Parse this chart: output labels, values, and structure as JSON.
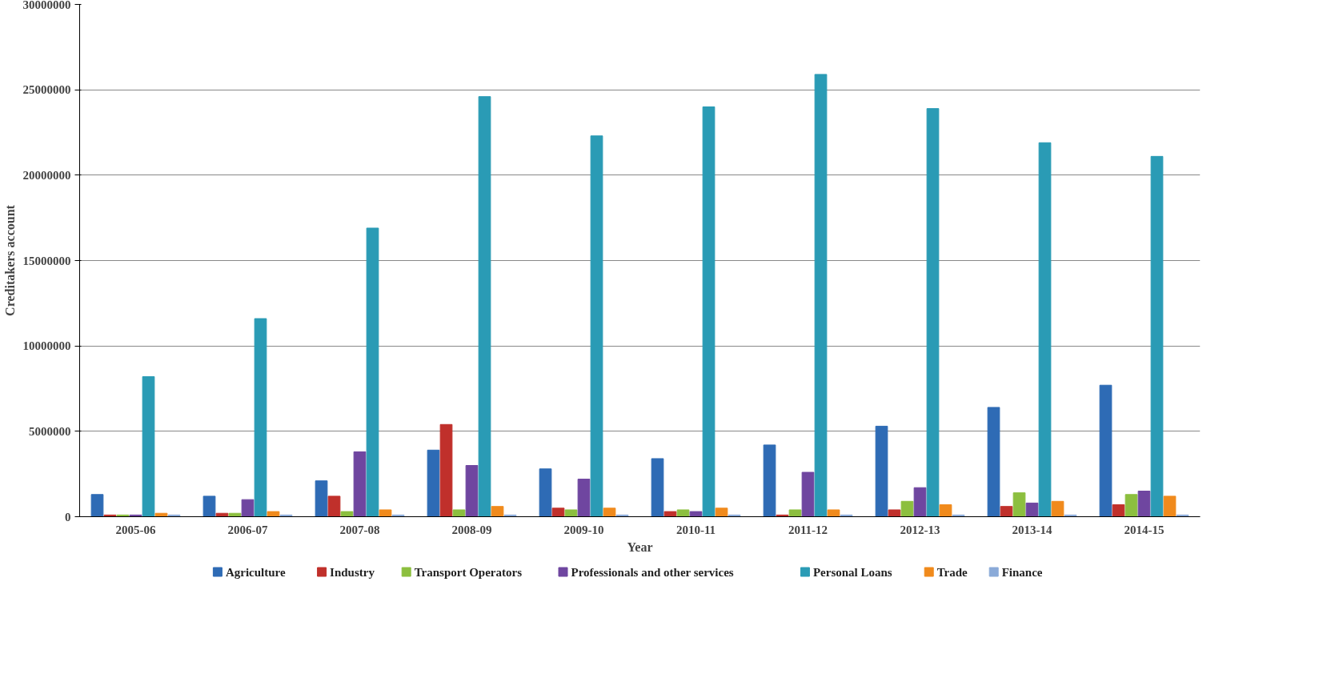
{
  "chart_data": {
    "type": "bar",
    "xlabel": "Year",
    "ylabel": "Creditakers account",
    "categories": [
      "2005-06",
      "2006-07",
      "2007-08",
      "2008-09",
      "2009-10",
      "2010-11",
      "2011-12",
      "2012-13",
      "2013-14",
      "2014-15"
    ],
    "series": [
      {
        "name": "Agriculture",
        "color": "#2e6bb5",
        "values": [
          1300000,
          1200000,
          2100000,
          3900000,
          2800000,
          3400000,
          4200000,
          5300000,
          6400000,
          7700000
        ]
      },
      {
        "name": "Industry",
        "color": "#c0302b",
        "values": [
          100000,
          200000,
          1200000,
          5400000,
          500000,
          300000,
          100000,
          400000,
          600000,
          700000
        ]
      },
      {
        "name": "Transport Operators",
        "color": "#8cbf3f",
        "values": [
          100000,
          200000,
          300000,
          400000,
          400000,
          400000,
          400000,
          900000,
          1400000,
          1300000
        ]
      },
      {
        "name": "Professionals and other services",
        "color": "#6f46a0",
        "values": [
          100000,
          1000000,
          3800000,
          3000000,
          2200000,
          300000,
          2600000,
          1700000,
          800000,
          1500000
        ]
      },
      {
        "name": "Personal Loans",
        "color": "#2a9bb5",
        "values": [
          8200000,
          11600000,
          16900000,
          24600000,
          22300000,
          24000000,
          25900000,
          23900000,
          21900000,
          21100000
        ]
      },
      {
        "name": "Trade",
        "color": "#f08a1c",
        "values": [
          200000,
          300000,
          400000,
          600000,
          500000,
          500000,
          400000,
          700000,
          900000,
          1200000
        ]
      },
      {
        "name": "Finance",
        "color": "#8aaad8",
        "values": [
          100000,
          100000,
          100000,
          100000,
          100000,
          100000,
          100000,
          100000,
          100000,
          100000
        ]
      }
    ],
    "ylim": [
      0,
      30000000
    ],
    "yticks": [
      0,
      5000000,
      10000000,
      15000000,
      20000000,
      25000000,
      30000000
    ],
    "grid": "y",
    "legend": "bottom"
  }
}
